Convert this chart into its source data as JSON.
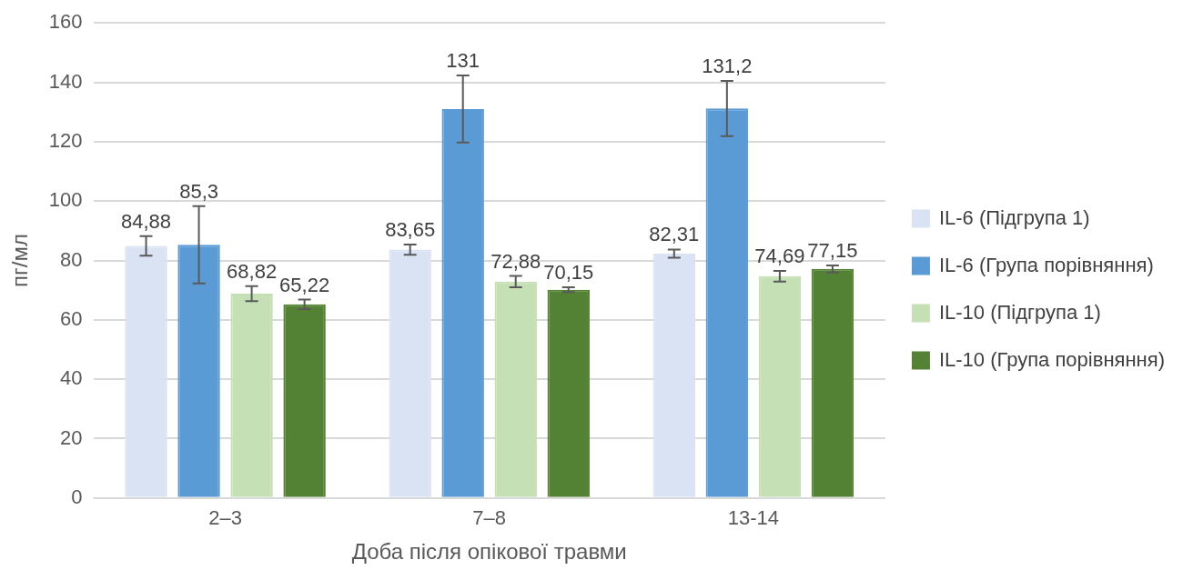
{
  "chart_data": {
    "type": "bar",
    "xlabel": "Доба після опікової травми",
    "ylabel": "пг/мл",
    "categories": [
      "2–3",
      "7–8",
      "13-14"
    ],
    "series": [
      {
        "name": "IL-6 (Підгрупа 1)",
        "color": "#dae3f3",
        "values": [
          84.88,
          83.65,
          82.31
        ],
        "errors": [
          3.3,
          1.7,
          1.4
        ],
        "value_labels": [
          "84,88",
          "83,65",
          "82,31"
        ]
      },
      {
        "name": "IL-6 (Група порівняння)",
        "color": "#5b9bd5",
        "values": [
          85.3,
          131,
          131.2
        ],
        "errors": [
          13,
          11.3,
          9.3
        ],
        "value_labels": [
          "85,3",
          "131",
          "131,2"
        ]
      },
      {
        "name": "IL-10 (Підгрупа 1)",
        "color": "#c5e0b4",
        "values": [
          68.82,
          72.88,
          74.69
        ],
        "errors": [
          2.5,
          1.9,
          1.8
        ],
        "value_labels": [
          "68,82",
          "72,88",
          "74,69"
        ]
      },
      {
        "name": "IL-10 (Група порівняння)",
        "color": "#548235",
        "values": [
          65.22,
          70.15,
          77.15
        ],
        "errors": [
          1.6,
          0.8,
          1.2
        ],
        "value_labels": [
          "65,22",
          "70,15",
          "77,15"
        ]
      }
    ],
    "ylim": [
      0,
      160
    ],
    "yticks": [
      0,
      20,
      40,
      60,
      80,
      100,
      120,
      140,
      160
    ],
    "grid": "y",
    "legend": "right"
  }
}
